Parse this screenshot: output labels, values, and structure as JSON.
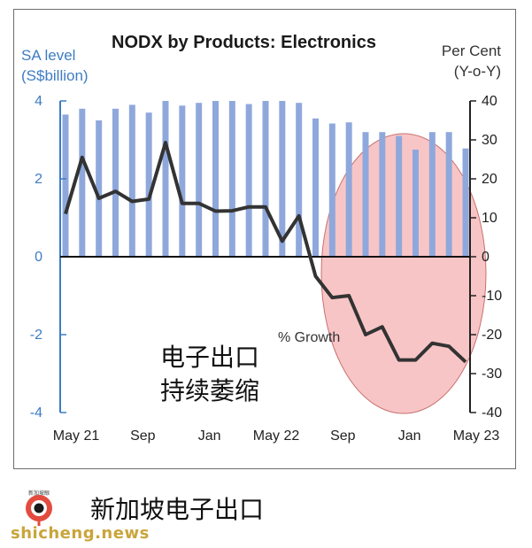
{
  "chart_data": {
    "type": "bar",
    "title": "NODX by Products: Electronics",
    "left_axis_label": [
      "SA level",
      "(S$billion)"
    ],
    "right_axis_label": [
      "Per Cent",
      "(Y-o-Y)"
    ],
    "left_ylim": [
      -4,
      4
    ],
    "left_ticks": [
      "4",
      "2",
      "0",
      "-2",
      "-4"
    ],
    "right_ylim": [
      -40,
      40
    ],
    "right_ticks": [
      "40",
      "30",
      "20",
      "10",
      "0",
      "-10",
      "-20",
      "-30",
      "-40"
    ],
    "x_tick_labels": [
      "May 21",
      "Sep",
      "Jan",
      "May 22",
      "Sep",
      "Jan",
      "May 23"
    ],
    "months": [
      "2021-05",
      "2021-06",
      "2021-07",
      "2021-08",
      "2021-09",
      "2021-10",
      "2021-11",
      "2021-12",
      "2022-01",
      "2022-02",
      "2022-03",
      "2022-04",
      "2022-05",
      "2022-06",
      "2022-07",
      "2022-08",
      "2022-09",
      "2022-10",
      "2022-11",
      "2022-12",
      "2023-01",
      "2023-02",
      "2023-03",
      "2023-04",
      "2023-05"
    ],
    "series": [
      {
        "kind": "bar",
        "axis": "left",
        "color": "#8fa8dc",
        "values": [
          3.65,
          3.8,
          3.5,
          3.8,
          3.9,
          3.7,
          4.0,
          3.88,
          3.95,
          4.0,
          4.0,
          3.92,
          4.0,
          4.0,
          3.95,
          3.55,
          3.42,
          3.45,
          3.2,
          3.2,
          3.1,
          2.75,
          3.2,
          3.2,
          2.78
        ]
      },
      {
        "kind": "line",
        "axis": "right",
        "name": "% Growth",
        "color": "#333333",
        "values": [
          11,
          25.5,
          15,
          16.8,
          14.2,
          14.8,
          29.3,
          13.7,
          13.7,
          11.7,
          11.8,
          12.8,
          12.8,
          4,
          10.5,
          -5,
          -10.5,
          -10,
          -20,
          -18,
          -26.5,
          -26.5,
          -22.2,
          -23,
          -27
        ]
      }
    ],
    "annotations": [
      "电子出口",
      "持续萎缩"
    ],
    "highlight_color": "#f4a6a8",
    "grid": false
  },
  "footer": {
    "caption": "新加坡电子出口",
    "logo_text": "新加坡眼",
    "watermark": "shicheng.news"
  }
}
